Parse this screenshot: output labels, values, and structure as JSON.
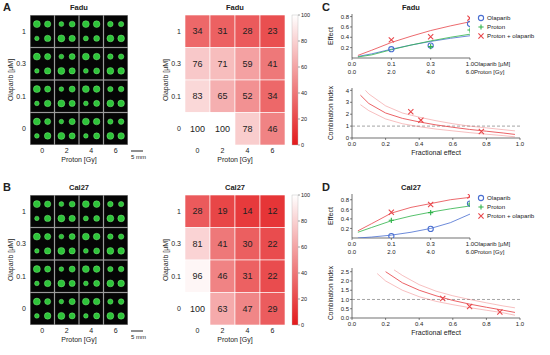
{
  "chart_data": [
    {
      "type": "image_grid",
      "panel": "A",
      "title": "Fadu",
      "x_label": "Proton [Gy]",
      "y_label": "Olaparib [µM]",
      "categories": [
        0,
        2,
        4,
        6
      ],
      "rows": [
        1,
        0.3,
        0.1,
        0
      ],
      "scale_bar": "5 mm"
    },
    {
      "type": "heatmap",
      "title": "Fadu",
      "x_label": "Proton [Gy]",
      "y_label": "Olaparib [µM]",
      "categories": [
        0,
        2,
        4,
        6
      ],
      "rows": [
        1,
        0.3,
        0.1,
        0
      ],
      "cells": [
        [
          34,
          31,
          28,
          23
        ],
        [
          76,
          71,
          59,
          41
        ],
        [
          83,
          65,
          52,
          34
        ],
        [
          100,
          100,
          78,
          46
        ]
      ],
      "data_labels": true,
      "colorbar": {
        "range": [
          0,
          100
        ],
        "ticks": [
          0,
          20,
          40,
          60,
          80,
          100
        ],
        "colors": [
          "#e31a1c",
          "#ffffff"
        ]
      }
    },
    {
      "type": "scatter",
      "panel": "C",
      "title": "Fadu",
      "y_label": "Effect",
      "x_label": "Proton [Gy]",
      "x2_label": "Olaparib [µM]",
      "xlim": [
        0,
        6
      ],
      "xticks": [
        {
          "value": 0,
          "label": "0.0"
        },
        {
          "value": 2,
          "label": "2.0"
        },
        {
          "value": 4,
          "label": "4.0"
        },
        {
          "value": 6,
          "label": "6.0"
        }
      ],
      "x2ticks": [
        {
          "value": 0,
          "label": "0.0"
        },
        {
          "value": 2,
          "label": "0.1"
        },
        {
          "value": 4,
          "label": "0.3"
        },
        {
          "value": 6,
          "label": "1.0"
        }
      ],
      "ylim": [
        0,
        0.85
      ],
      "yticks": [
        0.2,
        0.4,
        0.6,
        0.8
      ],
      "legend": "right",
      "series": [
        {
          "name": "Olaparib",
          "color": "#4a6fd1",
          "marker": "circle",
          "x": [
            2,
            4,
            6
          ],
          "values": [
            0.17,
            0.24,
            0.66
          ],
          "fit": {
            "x": [
              0.3,
              1,
              2,
              3,
              4,
              5,
              6
            ],
            "values": [
              0.03,
              0.08,
              0.17,
              0.25,
              0.32,
              0.38,
              0.43
            ]
          }
        },
        {
          "name": "Proton",
          "color": "#2fb34a",
          "marker": "plus",
          "x": [
            4,
            6
          ],
          "values": [
            0.22,
            0.54
          ],
          "fit": {
            "x": [
              0.3,
              1,
              2,
              3,
              4,
              5,
              6
            ],
            "values": [
              0.02,
              0.06,
              0.16,
              0.25,
              0.33,
              0.4,
              0.46
            ]
          }
        },
        {
          "name": "Proton + olaparib",
          "color": "#e8474b",
          "marker": "x",
          "x": [
            2,
            4,
            6
          ],
          "values": [
            0.35,
            0.41,
            0.77
          ],
          "fit": {
            "x": [
              0.3,
              1,
              2,
              3,
              4,
              5,
              6
            ],
            "values": [
              0.05,
              0.15,
              0.3,
              0.42,
              0.53,
              0.62,
              0.7
            ]
          }
        }
      ]
    },
    {
      "type": "line",
      "x_label": "Fractional effect",
      "y_label": "Combination index",
      "xlim": [
        0,
        1
      ],
      "xticks": [
        {
          "value": 0,
          "label": "0.0"
        },
        {
          "value": 0.2,
          "label": "0.2"
        },
        {
          "value": 0.4,
          "label": "0.4"
        },
        {
          "value": 0.6,
          "label": "0.6"
        },
        {
          "value": 0.8,
          "label": "0.8"
        },
        {
          "value": 1,
          "label": "1.0"
        }
      ],
      "ylim": [
        0,
        4.2
      ],
      "yticks": [
        0,
        1,
        2,
        3,
        4
      ],
      "hline": 1,
      "series": [
        {
          "color": "#e8474b",
          "marker": "x",
          "x": [
            0.35,
            0.41,
            0.77
          ],
          "values": [
            2.2,
            1.5,
            0.55
          ],
          "fit": {
            "x": [
              0.05,
              0.1,
              0.2,
              0.3,
              0.4,
              0.5,
              0.6,
              0.7,
              0.8,
              0.9,
              0.97
            ],
            "values": [
              3.6,
              2.9,
              2.1,
              1.65,
              1.35,
              1.1,
              0.9,
              0.72,
              0.57,
              0.42,
              0.3
            ]
          },
          "fit_upper": {
            "x": [
              0.08,
              0.1,
              0.2,
              0.3,
              0.4,
              0.5,
              0.6,
              0.7,
              0.8,
              0.9,
              0.97
            ],
            "values": [
              4.0,
              3.7,
              2.7,
              2.1,
              1.75,
              1.45,
              1.2,
              1.0,
              0.85,
              0.7,
              0.6
            ]
          },
          "fit_lower": {
            "x": [
              0.05,
              0.1,
              0.2,
              0.3,
              0.4,
              0.5,
              0.6,
              0.7,
              0.8,
              0.9,
              0.97
            ],
            "values": [
              2.8,
              2.3,
              1.6,
              1.2,
              0.95,
              0.75,
              0.6,
              0.45,
              0.32,
              0.2,
              0.1
            ]
          }
        }
      ]
    },
    {
      "type": "image_grid",
      "panel": "B",
      "title": "Cal27",
      "x_label": "Proton [Gy]",
      "y_label": "Olaparib [µM]",
      "categories": [
        0,
        2,
        4,
        6
      ],
      "rows": [
        1,
        0.3,
        0.1,
        0
      ],
      "scale_bar": "5 mm"
    },
    {
      "type": "heatmap",
      "title": "Cal27",
      "x_label": "Proton [Gy]",
      "y_label": "Olaparib [µM]",
      "categories": [
        0,
        2,
        4,
        6
      ],
      "rows": [
        1,
        0.3,
        0.1,
        0
      ],
      "cells": [
        [
          28,
          19,
          14,
          12
        ],
        [
          81,
          41,
          30,
          22
        ],
        [
          96,
          46,
          31,
          22
        ],
        [
          100,
          63,
          47,
          29
        ]
      ],
      "data_labels": true,
      "colorbar": {
        "range": [
          0,
          100
        ],
        "ticks": [
          0,
          20,
          40,
          60,
          80,
          100
        ],
        "colors": [
          "#e31a1c",
          "#ffffff"
        ]
      }
    },
    {
      "type": "scatter",
      "panel": "D",
      "title": "Cal27",
      "y_label": "Effect",
      "x_label": "Proton [Gy]",
      "x2_label": "Olaparib [µM]",
      "xlim": [
        0,
        6
      ],
      "xticks": [
        {
          "value": 0,
          "label": "0.0"
        },
        {
          "value": 2,
          "label": "2.0"
        },
        {
          "value": 4,
          "label": "4.0"
        },
        {
          "value": 6,
          "label": "6.0"
        }
      ],
      "x2ticks": [
        {
          "value": 0,
          "label": "0.0"
        },
        {
          "value": 2,
          "label": "0.1"
        },
        {
          "value": 4,
          "label": "0.3"
        },
        {
          "value": 6,
          "label": "1.0"
        }
      ],
      "ylim": [
        0,
        0.92
      ],
      "yticks": [
        0.2,
        0.4,
        0.6,
        0.8
      ],
      "legend": "right",
      "series": [
        {
          "name": "Olaparib",
          "color": "#4a6fd1",
          "marker": "circle",
          "x": [
            2,
            4,
            6
          ],
          "values": [
            0.04,
            0.19,
            0.72
          ],
          "fit": {
            "x": [
              0.3,
              1,
              2,
              3,
              4,
              5,
              6
            ],
            "values": [
              0.0,
              0.02,
              0.06,
              0.12,
              0.2,
              0.32,
              0.5
            ]
          }
        },
        {
          "name": "Proton",
          "color": "#2fb34a",
          "marker": "plus",
          "x": [
            2,
            4,
            6
          ],
          "values": [
            0.37,
            0.53,
            0.71
          ],
          "fit": {
            "x": [
              0.3,
              1,
              2,
              3,
              4,
              5,
              6
            ],
            "values": [
              0.12,
              0.22,
              0.36,
              0.46,
              0.54,
              0.61,
              0.67
            ]
          }
        },
        {
          "name": "Proton + olaparib",
          "color": "#e8474b",
          "marker": "x",
          "x": [
            2,
            4,
            6
          ],
          "values": [
            0.54,
            0.7,
            0.88
          ],
          "fit": {
            "x": [
              0.3,
              1,
              2,
              3,
              4,
              5,
              6
            ],
            "values": [
              0.15,
              0.3,
              0.52,
              0.64,
              0.72,
              0.8,
              0.85
            ]
          }
        }
      ]
    },
    {
      "type": "line",
      "x_label": "Fractional effect",
      "y_label": "Combination index",
      "xlim": [
        0,
        1
      ],
      "xticks": [
        {
          "value": 0,
          "label": "0.0"
        },
        {
          "value": 0.2,
          "label": "0.2"
        },
        {
          "value": 0.4,
          "label": "0.4"
        },
        {
          "value": 0.6,
          "label": "0.6"
        },
        {
          "value": 0.8,
          "label": "0.8"
        },
        {
          "value": 1,
          "label": "1.0"
        }
      ],
      "ylim": [
        0,
        2.7
      ],
      "yticks": [
        {
          "value": 0,
          "label": "0.0"
        },
        {
          "value": 0.5,
          "label": "0.5"
        },
        {
          "value": 1,
          "label": "1.0"
        },
        {
          "value": 1.5,
          "label": "1.5"
        },
        {
          "value": 2,
          "label": "2.0"
        },
        {
          "value": 2.5,
          "label": "2.5"
        }
      ],
      "hline": 1,
      "series": [
        {
          "color": "#e8474b",
          "marker": "x",
          "x": [
            0.54,
            0.7,
            0.88
          ],
          "values": [
            1.05,
            0.62,
            0.32
          ],
          "fit": {
            "x": [
              0.2,
              0.3,
              0.4,
              0.5,
              0.6,
              0.7,
              0.8,
              0.9,
              0.97
            ],
            "values": [
              2.5,
              1.9,
              1.5,
              1.2,
              0.95,
              0.75,
              0.58,
              0.42,
              0.3
            ]
          },
          "fit_upper": {
            "x": [
              0.25,
              0.3,
              0.4,
              0.5,
              0.6,
              0.7,
              0.8,
              0.9,
              0.97
            ],
            "values": [
              2.6,
              2.3,
              1.8,
              1.45,
              1.2,
              1.0,
              0.82,
              0.65,
              0.55
            ]
          },
          "fit_lower": {
            "x": [
              0.15,
              0.2,
              0.3,
              0.4,
              0.5,
              0.6,
              0.7,
              0.8,
              0.9,
              0.97
            ],
            "values": [
              2.4,
              2.0,
              1.5,
              1.15,
              0.9,
              0.72,
              0.56,
              0.42,
              0.28,
              0.15
            ]
          }
        }
      ]
    }
  ]
}
